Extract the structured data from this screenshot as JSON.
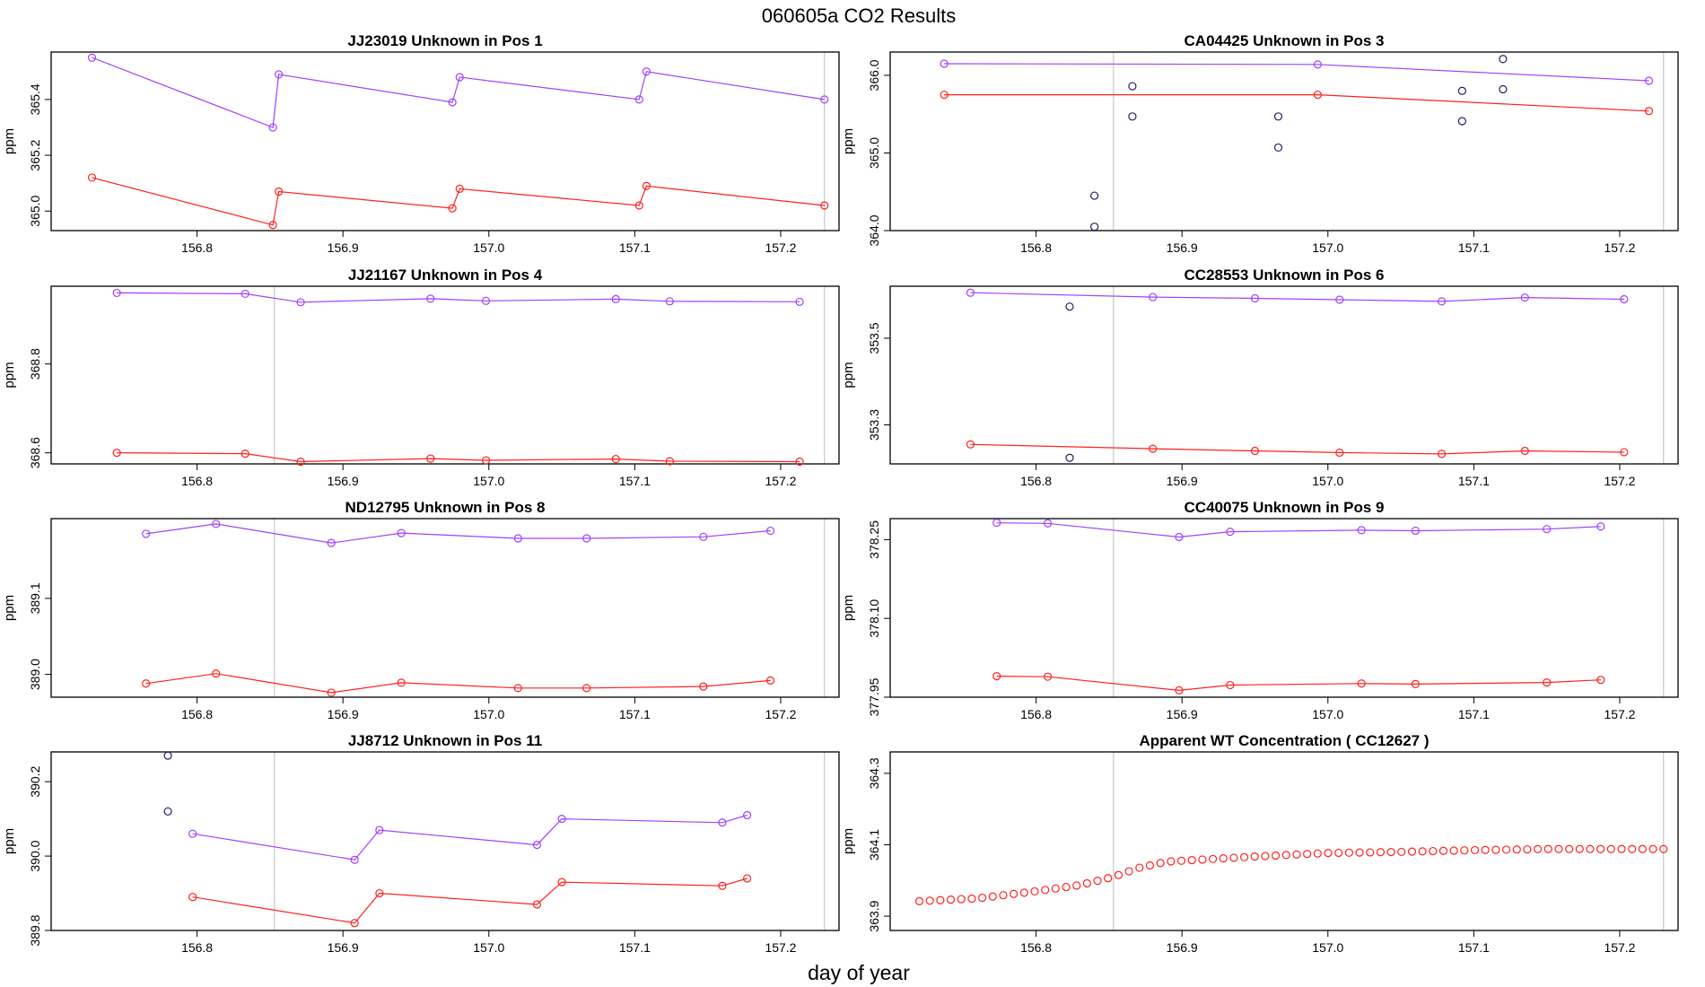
{
  "figure": {
    "title": "060605a  CO2 Results",
    "xlabel": "day of year",
    "colors": {
      "upper_series": "#a040ff",
      "lower_series": "#ff2020",
      "extra_points": "#301860",
      "vertical_line": "#c8c8c8",
      "frame": "#000000"
    }
  },
  "chart_data": [
    {
      "type": "scatter",
      "title": "JJ23019    Unknown in Pos 1",
      "ylabel": "ppm",
      "xlim": [
        156.7,
        157.24
      ],
      "ylim": [
        364.93,
        365.57
      ],
      "xticks": [
        156.8,
        156.9,
        157.0,
        157.1,
        157.2
      ],
      "yticks": [
        365.0,
        365.2,
        365.4
      ],
      "vlines": [
        157.23
      ],
      "series": [
        {
          "name": "upper",
          "line": true,
          "x": [
            156.728,
            156.852,
            156.856,
            156.975,
            156.98,
            157.103,
            157.108,
            157.23
          ],
          "y": [
            365.55,
            365.3,
            365.49,
            365.39,
            365.48,
            365.4,
            365.5,
            365.4
          ]
        },
        {
          "name": "lower",
          "line": true,
          "x": [
            156.728,
            156.852,
            156.856,
            156.975,
            156.98,
            157.103,
            157.108,
            157.23
          ],
          "y": [
            365.12,
            364.95,
            365.07,
            365.01,
            365.08,
            365.02,
            365.09,
            365.02
          ]
        }
      ]
    },
    {
      "type": "scatter",
      "title": "CA04425    Unknown in Pos 3",
      "ylabel": "ppm",
      "xlim": [
        156.7,
        157.24
      ],
      "ylim": [
        364.0,
        366.3
      ],
      "xticks": [
        156.8,
        156.9,
        157.0,
        157.1,
        157.2
      ],
      "yticks": [
        364.0,
        365.0,
        366.0
      ],
      "vlines": [
        156.853,
        157.23
      ],
      "series": [
        {
          "name": "upper",
          "line": true,
          "x": [
            156.737,
            156.993,
            157.22
          ],
          "y": [
            366.15,
            366.14,
            365.93
          ]
        },
        {
          "name": "lower",
          "line": true,
          "x": [
            156.737,
            156.993,
            157.22
          ],
          "y": [
            365.75,
            365.75,
            365.54
          ]
        },
        {
          "name": "other",
          "line": false,
          "x": [
            156.84,
            156.84,
            156.866,
            156.866,
            156.966,
            156.966,
            157.092,
            157.092,
            157.12,
            157.12
          ],
          "y": [
            364.45,
            364.05,
            365.86,
            365.47,
            365.47,
            365.07,
            365.8,
            365.41,
            366.21,
            365.82
          ]
        }
      ]
    },
    {
      "type": "scatter",
      "title": "JJ21167    Unknown in Pos 4",
      "ylabel": "ppm",
      "xlim": [
        156.7,
        157.24
      ],
      "ylim": [
        368.575,
        368.975
      ],
      "xticks": [
        156.8,
        156.9,
        157.0,
        157.1,
        157.2
      ],
      "yticks": [
        368.6,
        368.8
      ],
      "vlines": [
        156.853,
        157.23
      ],
      "series": [
        {
          "name": "upper",
          "line": true,
          "x": [
            156.745,
            156.833,
            156.871,
            156.96,
            156.998,
            157.087,
            157.124,
            157.213
          ],
          "y": [
            368.96,
            368.958,
            368.939,
            368.947,
            368.942,
            368.946,
            368.941,
            368.94
          ]
        },
        {
          "name": "lower",
          "line": true,
          "x": [
            156.745,
            156.833,
            156.871,
            156.96,
            156.998,
            157.087,
            157.124,
            157.213
          ],
          "y": [
            368.6,
            368.598,
            368.58,
            368.587,
            368.583,
            368.586,
            368.581,
            368.58
          ]
        }
      ]
    },
    {
      "type": "scatter",
      "title": "CC28553    Unknown in Pos 6",
      "ylabel": "ppm",
      "xlim": [
        156.7,
        157.24
      ],
      "ylim": [
        353.21,
        353.62
      ],
      "xticks": [
        156.8,
        156.9,
        157.0,
        157.1,
        157.2
      ],
      "yticks": [
        353.3,
        353.5
      ],
      "vlines": [
        156.853,
        157.23
      ],
      "series": [
        {
          "name": "upper",
          "line": true,
          "x": [
            156.755,
            156.88,
            156.95,
            157.008,
            157.078,
            157.135,
            157.203
          ],
          "y": [
            353.605,
            353.595,
            353.592,
            353.589,
            353.585,
            353.594,
            353.59
          ]
        },
        {
          "name": "lower",
          "line": true,
          "x": [
            156.755,
            156.88,
            156.95,
            157.008,
            157.078,
            157.135,
            157.203
          ],
          "y": [
            353.255,
            353.245,
            353.24,
            353.236,
            353.233,
            353.24,
            353.237
          ]
        },
        {
          "name": "other",
          "line": false,
          "x": [
            156.823,
            156.823
          ],
          "y": [
            353.573,
            353.224
          ]
        }
      ]
    },
    {
      "type": "scatter",
      "title": "ND12795    Unknown in Pos 8",
      "ylabel": "ppm",
      "xlim": [
        156.7,
        157.24
      ],
      "ylim": [
        388.97,
        389.205
      ],
      "xticks": [
        156.8,
        156.9,
        157.0,
        157.1,
        157.2
      ],
      "yticks": [
        389.0,
        389.1
      ],
      "vlines": [
        156.853,
        157.23
      ],
      "series": [
        {
          "name": "upper",
          "line": true,
          "x": [
            156.765,
            156.813,
            156.892,
            156.94,
            157.02,
            157.067,
            157.147,
            157.193
          ],
          "y": [
            389.185,
            389.198,
            389.173,
            389.186,
            389.179,
            389.179,
            389.181,
            389.189
          ]
        },
        {
          "name": "lower",
          "line": true,
          "x": [
            156.765,
            156.813,
            156.892,
            156.94,
            157.02,
            157.067,
            157.147,
            157.193
          ],
          "y": [
            388.988,
            389.001,
            388.976,
            388.989,
            388.982,
            388.982,
            388.984,
            388.992
          ]
        }
      ]
    },
    {
      "type": "scatter",
      "title": "CC40075    Unknown in Pos 9",
      "ylabel": "ppm",
      "xlim": [
        156.7,
        157.24
      ],
      "ylim": [
        377.95,
        378.29
      ],
      "xticks": [
        156.8,
        156.9,
        157.0,
        157.1,
        157.2
      ],
      "yticks": [
        377.95,
        378.1,
        378.25
      ],
      "vlines": [
        156.853,
        157.23
      ],
      "series": [
        {
          "name": "upper",
          "line": true,
          "x": [
            156.773,
            156.808,
            156.898,
            156.933,
            157.023,
            157.06,
            157.15,
            157.187
          ],
          "y": [
            378.282,
            378.281,
            378.255,
            378.265,
            378.268,
            378.267,
            378.27,
            378.275
          ]
        },
        {
          "name": "lower",
          "line": true,
          "x": [
            156.773,
            156.808,
            156.898,
            156.933,
            157.023,
            157.06,
            157.15,
            157.187
          ],
          "y": [
            377.99,
            377.989,
            377.963,
            377.973,
            377.976,
            377.975,
            377.978,
            377.983
          ]
        }
      ]
    },
    {
      "type": "scatter",
      "title": "JJ8712    Unknown in Pos 11",
      "ylabel": "ppm",
      "xlim": [
        156.7,
        157.24
      ],
      "ylim": [
        389.8,
        390.28
      ],
      "xticks": [
        156.8,
        156.9,
        157.0,
        157.1,
        157.2
      ],
      "yticks": [
        389.8,
        390.0,
        390.2
      ],
      "vlines": [
        156.853,
        157.23
      ],
      "series": [
        {
          "name": "upper",
          "line": true,
          "x": [
            156.797,
            156.908,
            156.925,
            157.033,
            157.05,
            157.16,
            157.177
          ],
          "y": [
            390.06,
            389.99,
            390.07,
            390.03,
            390.1,
            390.09,
            390.11
          ]
        },
        {
          "name": "lower",
          "line": true,
          "x": [
            156.797,
            156.908,
            156.925,
            157.033,
            157.05,
            157.16,
            157.177
          ],
          "y": [
            389.89,
            389.82,
            389.9,
            389.87,
            389.93,
            389.92,
            389.94
          ]
        },
        {
          "name": "other",
          "line": false,
          "x": [
            156.78,
            156.78
          ],
          "y": [
            390.27,
            390.12
          ]
        }
      ]
    },
    {
      "type": "scatter",
      "title": "Apparent WT Concentration ( CC12627 )",
      "ylabel": "ppm",
      "xlim": [
        156.7,
        157.24
      ],
      "ylim": [
        363.86,
        364.36
      ],
      "xticks": [
        156.8,
        156.9,
        157.0,
        157.1,
        157.2
      ],
      "yticks": [
        363.9,
        364.1,
        364.3
      ],
      "vlines": [
        156.853,
        157.23
      ],
      "smooth_curve": {
        "x_start": 156.72,
        "x_end": 157.23,
        "count": 72,
        "anchors": [
          [
            156.72,
            363.942
          ],
          [
            156.76,
            363.95
          ],
          [
            156.8,
            363.97
          ],
          [
            156.83,
            363.987
          ],
          [
            156.853,
            364.01
          ],
          [
            156.87,
            364.035
          ],
          [
            156.89,
            364.053
          ],
          [
            156.92,
            364.06
          ],
          [
            156.95,
            364.067
          ],
          [
            157.0,
            364.077
          ],
          [
            157.05,
            364.08
          ],
          [
            157.1,
            364.085
          ],
          [
            157.15,
            364.088
          ],
          [
            157.23,
            364.088
          ]
        ]
      }
    }
  ]
}
